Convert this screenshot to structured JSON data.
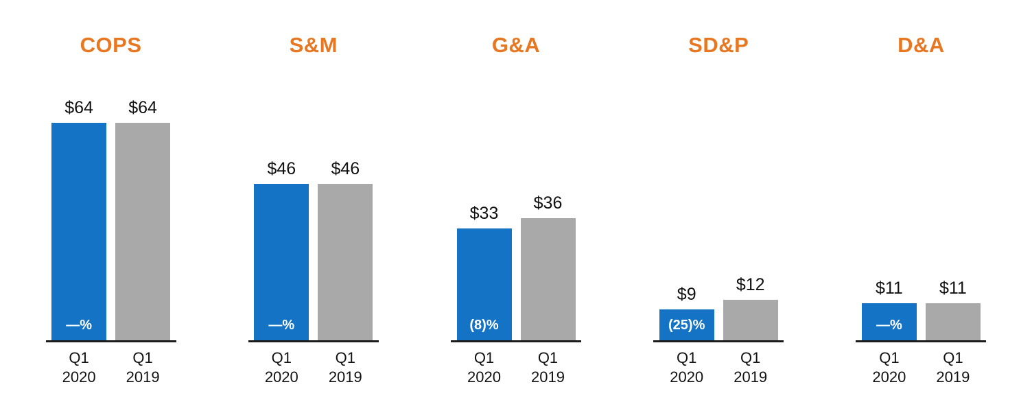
{
  "colors": {
    "title": "#E87722",
    "bar_q1_2020": "#1473C5",
    "bar_q1_2019": "#A9A9A9",
    "axis": "#1A1A1A",
    "value_text": "#111111",
    "change_text": "#FFFFFF"
  },
  "chart_data": {
    "type": "bar",
    "ylim": [
      0,
      64
    ],
    "value_prefix": "$",
    "groups": [
      {
        "title": "COPS",
        "bars": [
          {
            "series": "Q1 2020",
            "quarter": "Q1",
            "year": "2020",
            "value": 64,
            "display": "$64",
            "change": "—%"
          },
          {
            "series": "Q1 2019",
            "quarter": "Q1",
            "year": "2019",
            "value": 64,
            "display": "$64"
          }
        ]
      },
      {
        "title": "S&M",
        "bars": [
          {
            "series": "Q1 2020",
            "quarter": "Q1",
            "year": "2020",
            "value": 46,
            "display": "$46",
            "change": "—%"
          },
          {
            "series": "Q1 2019",
            "quarter": "Q1",
            "year": "2019",
            "value": 46,
            "display": "$46"
          }
        ]
      },
      {
        "title": "G&A",
        "bars": [
          {
            "series": "Q1 2020",
            "quarter": "Q1",
            "year": "2020",
            "value": 33,
            "display": "$33",
            "change": "(8)%"
          },
          {
            "series": "Q1 2019",
            "quarter": "Q1",
            "year": "2019",
            "value": 36,
            "display": "$36"
          }
        ]
      },
      {
        "title": "SD&P",
        "bars": [
          {
            "series": "Q1 2020",
            "quarter": "Q1",
            "year": "2020",
            "value": 9,
            "display": "$9",
            "change": "(25)%"
          },
          {
            "series": "Q1 2019",
            "quarter": "Q1",
            "year": "2019",
            "value": 12,
            "display": "$12"
          }
        ]
      },
      {
        "title": "D&A",
        "bars": [
          {
            "series": "Q1 2020",
            "quarter": "Q1",
            "year": "2020",
            "value": 11,
            "display": "$11",
            "change": "—%"
          },
          {
            "series": "Q1 2019",
            "quarter": "Q1",
            "year": "2019",
            "value": 11,
            "display": "$11"
          }
        ]
      }
    ]
  }
}
